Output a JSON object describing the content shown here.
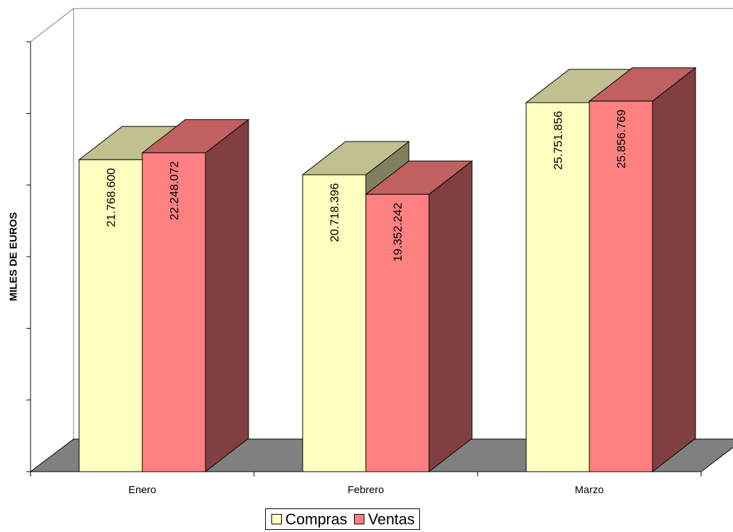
{
  "chart_data": {
    "type": "bar",
    "categories": [
      "Enero",
      "Febrero",
      "Marzo"
    ],
    "series": [
      {
        "name": "Compras",
        "values": [
          21768600,
          20718396,
          25751856
        ],
        "labels": [
          "21.768.600",
          "20.718.396",
          "25.751.856"
        ],
        "color": "#FFFFC0",
        "top_color": "#C0C090",
        "side_color": "#808060"
      },
      {
        "name": "Ventas",
        "values": [
          22248072,
          19352242,
          25856769
        ],
        "labels": [
          "22.248.072",
          "19.352.242",
          "25.856.769"
        ],
        "color": "#FF8080",
        "top_color": "#C06060",
        "side_color": "#804040"
      }
    ],
    "ylabel": "MILES DE EUROS",
    "ylim": [
      0,
      30000000
    ],
    "y_tick_step": 5000000,
    "legend_position": "bottom",
    "view": "3d-perspective",
    "floor_color": "#808080"
  }
}
